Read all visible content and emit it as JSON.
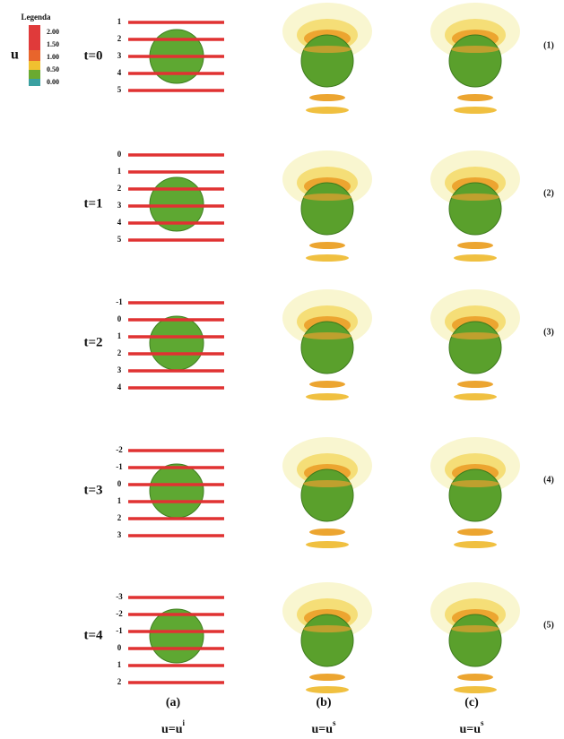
{
  "legend": {
    "title": "Legenda",
    "variable": "u",
    "labels": [
      "2.00",
      "1.50",
      "1.00",
      "0.50",
      "0.00"
    ]
  },
  "rows": [
    {
      "time": "t=0",
      "number": "(1)",
      "lines": [
        "1",
        "2",
        "3",
        "4",
        "5"
      ]
    },
    {
      "time": "t=1",
      "number": "(2)",
      "lines": [
        "0",
        "1",
        "2",
        "3",
        "4",
        "5"
      ]
    },
    {
      "time": "t=2",
      "number": "(3)",
      "lines": [
        "-1",
        "0",
        "1",
        "2",
        "3",
        "4"
      ]
    },
    {
      "time": "t=3",
      "number": "(4)",
      "lines": [
        "-2",
        "-1",
        "0",
        "1",
        "2",
        "3"
      ]
    },
    {
      "time": "t=4",
      "number": "(5)",
      "lines": [
        "-3",
        "-2",
        "-1",
        "0",
        "1",
        "2"
      ]
    }
  ],
  "columns": [
    {
      "label": "(a)",
      "formula": "u=u",
      "superscript": "i"
    },
    {
      "label": "(b)",
      "formula": "u=u",
      "superscript": "s"
    },
    {
      "label": "(c)",
      "formula": "u=u",
      "superscript": "s"
    }
  ]
}
